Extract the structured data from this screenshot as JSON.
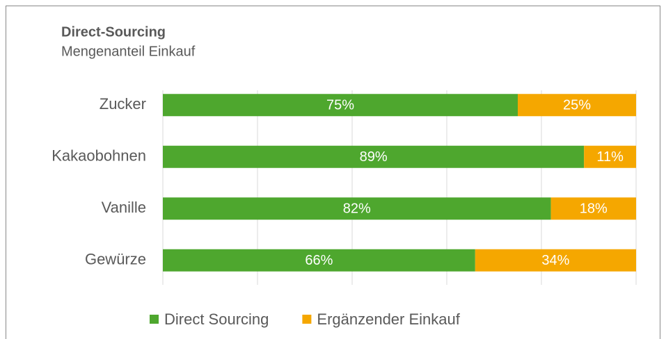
{
  "chart_data": {
    "type": "stacked-bar-horizontal",
    "title": "Direct-Sourcing",
    "subtitle": "Mengenanteil Einkauf",
    "categories": [
      "Zucker",
      "Kakaobohnen",
      "Vanille",
      "Gewürze"
    ],
    "series": [
      {
        "name": "Direct Sourcing",
        "color": "#4ea72e",
        "values": [
          75,
          89,
          82,
          66
        ],
        "value_labels": [
          "75%",
          "89%",
          "82%",
          "66%"
        ]
      },
      {
        "name": "Ergänzender Einkauf",
        "color": "#f5a700",
        "values": [
          25,
          11,
          18,
          34
        ],
        "value_labels": [
          "25%",
          "11%",
          "18%",
          "34%"
        ]
      }
    ],
    "xlim": [
      0,
      100
    ],
    "xticks": [
      0,
      20,
      40,
      60,
      80,
      100
    ],
    "grid": true,
    "legend": "bottom"
  }
}
